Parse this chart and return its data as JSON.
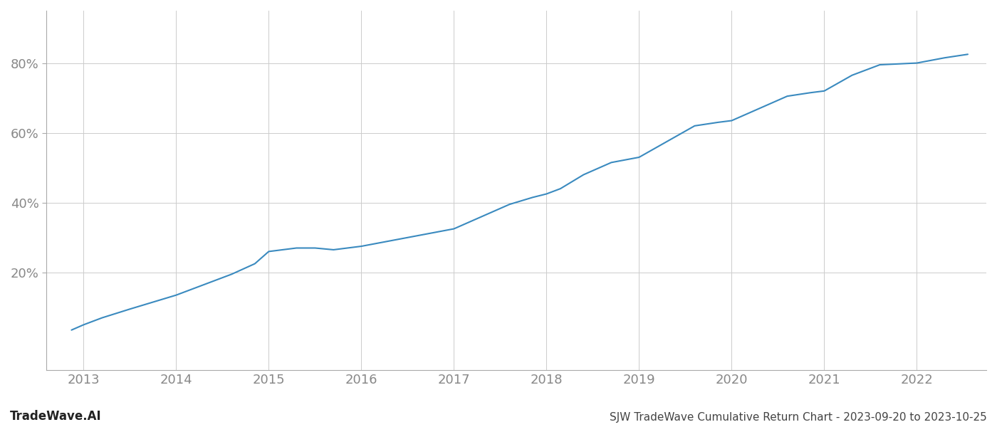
{
  "title": "SJW TradeWave Cumulative Return Chart - 2023-09-20 to 2023-10-25",
  "watermark": "TradeWave.AI",
  "line_color": "#3a8abf",
  "background_color": "#ffffff",
  "grid_color": "#cccccc",
  "x_years": [
    2013,
    2014,
    2015,
    2016,
    2017,
    2018,
    2019,
    2020,
    2021,
    2022
  ],
  "x_values": [
    2012.87,
    2013.0,
    2013.2,
    2013.5,
    2013.75,
    2014.0,
    2014.3,
    2014.6,
    2014.85,
    2015.0,
    2015.15,
    2015.3,
    2015.5,
    2015.7,
    2016.0,
    2016.3,
    2016.6,
    2017.0,
    2017.3,
    2017.6,
    2017.85,
    2018.0,
    2018.15,
    2018.4,
    2018.7,
    2019.0,
    2019.3,
    2019.6,
    2019.85,
    2020.0,
    2020.3,
    2020.6,
    2020.85,
    2021.0,
    2021.3,
    2021.6,
    2022.0,
    2022.3,
    2022.55
  ],
  "y_values": [
    3.5,
    5.0,
    7.0,
    9.5,
    11.5,
    13.5,
    16.5,
    19.5,
    22.5,
    26.0,
    26.5,
    27.0,
    27.0,
    26.5,
    27.5,
    29.0,
    30.5,
    32.5,
    36.0,
    39.5,
    41.5,
    42.5,
    44.0,
    48.0,
    51.5,
    53.0,
    57.5,
    62.0,
    63.0,
    63.5,
    67.0,
    70.5,
    71.5,
    72.0,
    76.5,
    79.5,
    80.0,
    81.5,
    82.5
  ],
  "yticks": [
    20,
    40,
    60,
    80
  ],
  "ylim": [
    -8,
    95
  ],
  "xlim": [
    2012.6,
    2022.75
  ],
  "tick_color": "#888888",
  "tick_fontsize": 13,
  "title_fontsize": 11,
  "watermark_fontsize": 12,
  "spine_color": "#aaaaaa"
}
